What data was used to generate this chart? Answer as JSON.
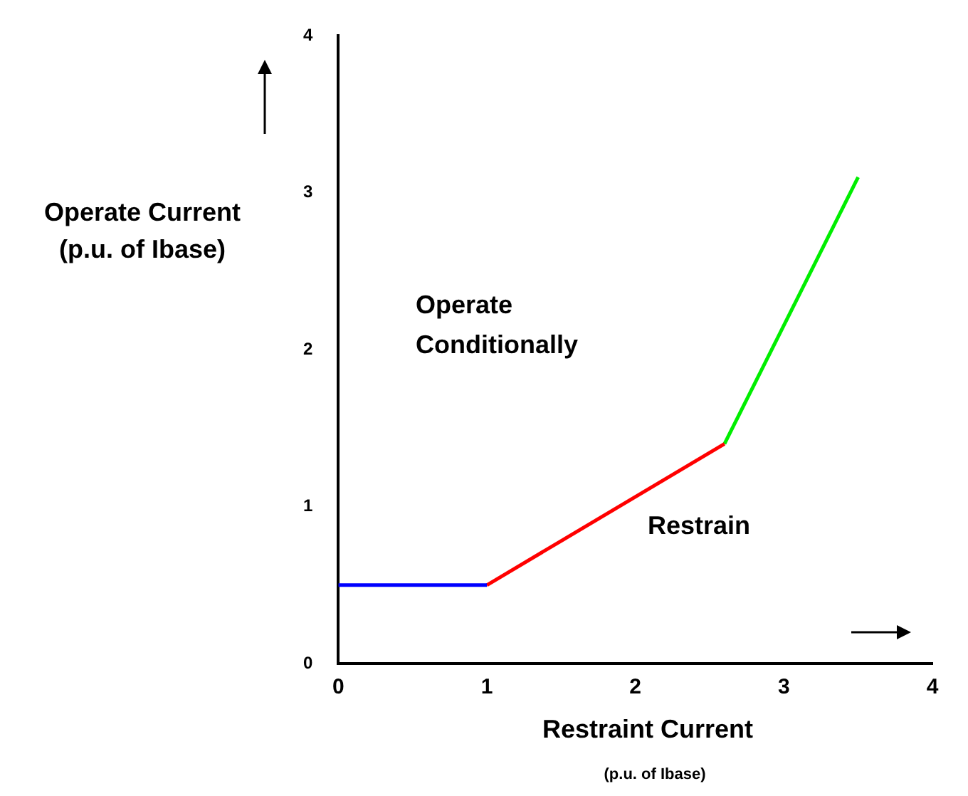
{
  "chart_data": {
    "type": "line",
    "xlabel": "Restraint Current",
    "ylabel": "Operate Current (p.u. of Ibase)",
    "series": [
      {
        "color": "#0000ff",
        "x": [
          0,
          1
        ],
        "values": [
          0.5,
          0.5
        ]
      },
      {
        "color": "#ff0000",
        "x": [
          1,
          2.6
        ],
        "values": [
          0.5,
          1.4
        ]
      },
      {
        "color": "#00ee00",
        "x": [
          2.6,
          3.5
        ],
        "values": [
          1.4,
          3.1
        ]
      }
    ],
    "xlim": [
      0,
      4
    ],
    "ylim": [
      0,
      4
    ],
    "xticks": [
      0,
      1,
      2,
      3,
      4
    ],
    "yticks": [
      0,
      1,
      2,
      3,
      4
    ],
    "annotations": [
      "Operate Conditionally",
      "Restrain",
      "(p.u. of Ibase)"
    ],
    "grid": false,
    "legend": false,
    "marker": "none",
    "line_style": "solid"
  }
}
